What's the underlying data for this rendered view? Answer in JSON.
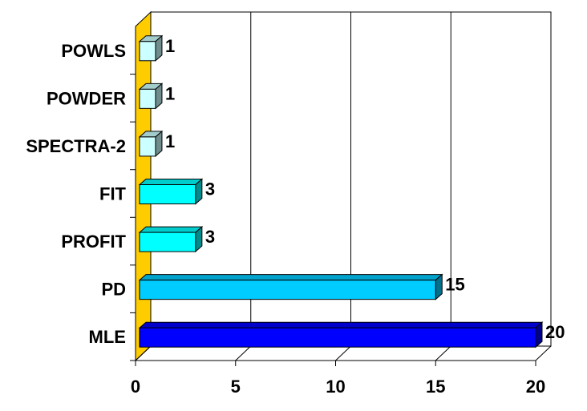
{
  "chart_data": {
    "type": "bar",
    "orientation": "horizontal",
    "style": "3d",
    "categories": [
      "POWLS",
      "POWDER",
      "SPECTRA-2",
      "FIT",
      "PROFIT",
      "PD",
      "MLE"
    ],
    "values": [
      1,
      1,
      1,
      3,
      3,
      15,
      20
    ],
    "bar_colors": [
      "#ccffff",
      "#ccffff",
      "#ccffff",
      "#00ffff",
      "#00ffff",
      "#00ccff",
      "#0000ff"
    ],
    "xlim": [
      0,
      20
    ],
    "xticks": [
      0,
      5,
      10,
      15,
      20
    ],
    "grid": true,
    "title": "",
    "xlabel": "",
    "ylabel": "",
    "wall_color": "#ffcc00"
  }
}
